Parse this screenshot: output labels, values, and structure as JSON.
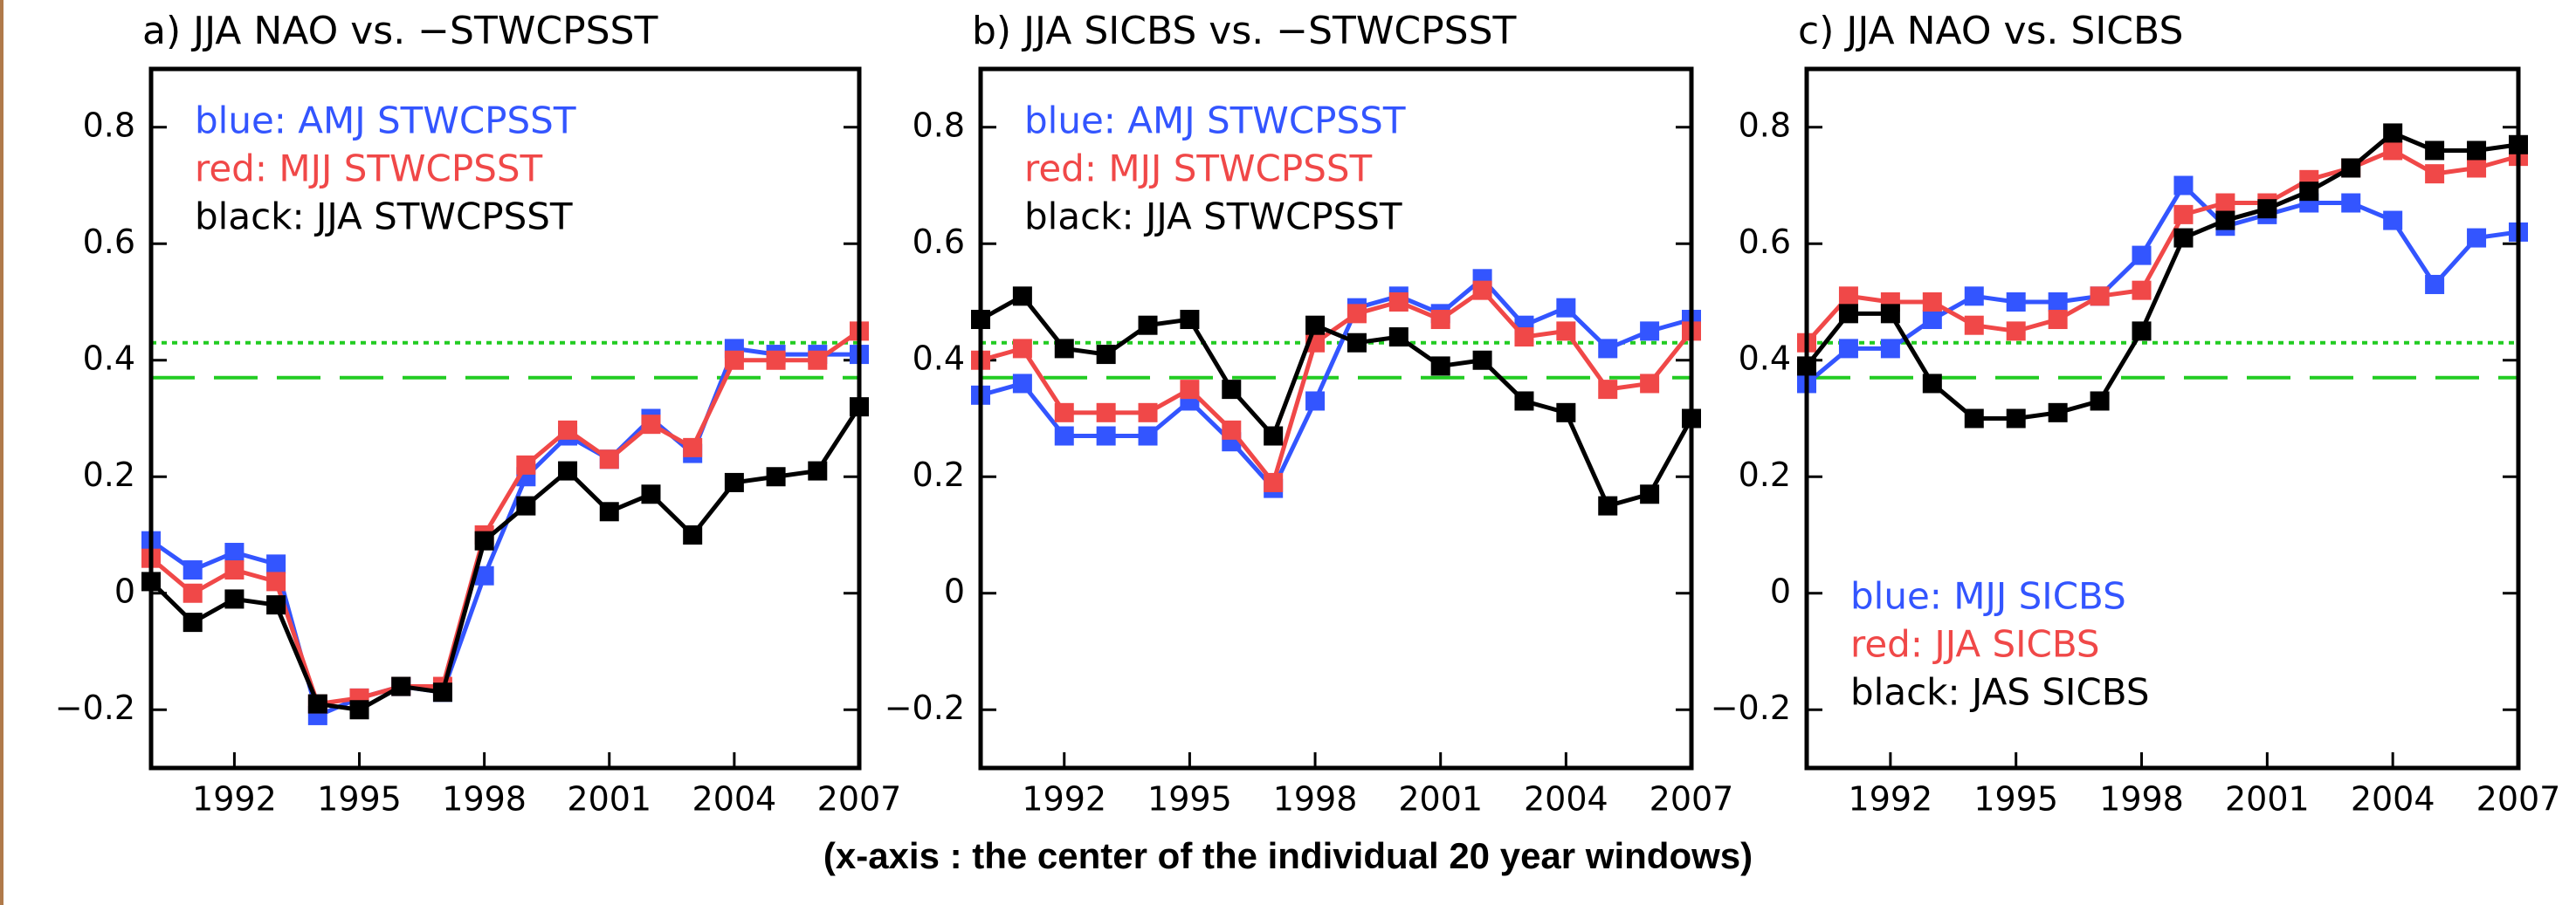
{
  "chart_data": [
    {
      "type": "line",
      "title": "a) JJA NAO vs. −STWCPSST",
      "x": [
        1990,
        1991,
        1992,
        1993,
        1994,
        1995,
        1996,
        1997,
        1998,
        1999,
        2000,
        2001,
        2002,
        2003,
        2004,
        2005,
        2006,
        2007
      ],
      "xlim": [
        1990,
        2007
      ],
      "xticks": [
        1992,
        1995,
        1998,
        2001,
        2004,
        2007
      ],
      "ylim": [
        -0.3,
        0.9
      ],
      "yticks": [
        0.8,
        0.6,
        0.4,
        0.2,
        0,
        {
          "value": -0.2,
          "label": "−0.2"
        }
      ],
      "legend": "upper left",
      "reference_lines": [
        {
          "value": 0.43,
          "style": "dotted",
          "color": "#22cc22"
        },
        {
          "value": 0.37,
          "style": "dashed",
          "color": "#22cc22"
        }
      ],
      "series": [
        {
          "name": "blue: AMJ STWCPSST",
          "color": "#3355ff",
          "values": [
            0.09,
            0.04,
            0.07,
            0.05,
            -0.21,
            -0.18,
            -0.16,
            -0.17,
            0.03,
            0.2,
            0.27,
            0.23,
            0.3,
            0.24,
            0.42,
            0.41,
            0.41,
            0.41
          ]
        },
        {
          "name": "red: MJJ STWCPSST",
          "color": "#f04848",
          "values": [
            0.06,
            0.0,
            0.04,
            0.02,
            -0.19,
            -0.18,
            -0.16,
            -0.16,
            0.1,
            0.22,
            0.28,
            0.23,
            0.29,
            0.25,
            0.4,
            0.4,
            0.4,
            0.45
          ]
        },
        {
          "name": "black: JJA STWCPSST",
          "color": "#000000",
          "values": [
            0.02,
            -0.05,
            -0.01,
            -0.02,
            -0.19,
            -0.2,
            -0.16,
            -0.17,
            0.09,
            0.15,
            0.21,
            0.14,
            0.17,
            0.1,
            0.19,
            0.2,
            0.21,
            0.32
          ]
        }
      ]
    },
    {
      "type": "line",
      "title": "b) JJA SICBS vs. −STWCPSST",
      "x": [
        1990,
        1991,
        1992,
        1993,
        1994,
        1995,
        1996,
        1997,
        1998,
        1999,
        2000,
        2001,
        2002,
        2003,
        2004,
        2005,
        2006,
        2007
      ],
      "xlim": [
        1990,
        2007
      ],
      "xticks": [
        1992,
        1995,
        1998,
        2001,
        2004,
        2007
      ],
      "ylim": [
        -0.3,
        0.9
      ],
      "yticks": [
        0.8,
        0.6,
        0.4,
        0.2,
        0,
        {
          "value": -0.2,
          "label": "−0.2"
        }
      ],
      "legend": "upper left",
      "reference_lines": [
        {
          "value": 0.43,
          "style": "dotted",
          "color": "#22cc22"
        },
        {
          "value": 0.37,
          "style": "dashed",
          "color": "#22cc22"
        }
      ],
      "series": [
        {
          "name": "blue: AMJ STWCPSST",
          "color": "#3355ff",
          "values": [
            0.34,
            0.36,
            0.27,
            0.27,
            0.27,
            0.33,
            0.26,
            0.18,
            0.33,
            0.49,
            0.51,
            0.48,
            0.54,
            0.46,
            0.49,
            0.42,
            0.45,
            0.47
          ]
        },
        {
          "name": "red: MJJ STWCPSST",
          "color": "#f04848",
          "values": [
            0.4,
            0.42,
            0.31,
            0.31,
            0.31,
            0.35,
            0.28,
            0.19,
            0.43,
            0.48,
            0.5,
            0.47,
            0.52,
            0.44,
            0.45,
            0.35,
            0.36,
            0.45
          ]
        },
        {
          "name": "black: JJA STWCPSST",
          "color": "#000000",
          "values": [
            0.47,
            0.51,
            0.42,
            0.41,
            0.46,
            0.47,
            0.35,
            0.27,
            0.46,
            0.43,
            0.44,
            0.39,
            0.4,
            0.33,
            0.31,
            0.15,
            0.17,
            0.3
          ]
        }
      ]
    },
    {
      "type": "line",
      "title": "c) JJA NAO vs. SICBS",
      "x": [
        1990,
        1991,
        1992,
        1993,
        1994,
        1995,
        1996,
        1997,
        1998,
        1999,
        2000,
        2001,
        2002,
        2003,
        2004,
        2005,
        2006,
        2007
      ],
      "xlim": [
        1990,
        2007
      ],
      "xticks": [
        1992,
        1995,
        1998,
        2001,
        2004,
        2007
      ],
      "ylim": [
        -0.3,
        0.9
      ],
      "yticks": [
        0.8,
        0.6,
        0.4,
        0.2,
        0,
        {
          "value": -0.2,
          "label": "−0.2"
        }
      ],
      "legend": "lower left",
      "reference_lines": [
        {
          "value": 0.43,
          "style": "dotted",
          "color": "#22cc22"
        },
        {
          "value": 0.37,
          "style": "dashed",
          "color": "#22cc22"
        }
      ],
      "series": [
        {
          "name": "blue: MJJ SICBS",
          "color": "#3355ff",
          "values": [
            0.36,
            0.42,
            0.42,
            0.47,
            0.51,
            0.5,
            0.5,
            0.51,
            0.58,
            0.7,
            0.63,
            0.65,
            0.67,
            0.67,
            0.64,
            0.53,
            0.61,
            0.62
          ]
        },
        {
          "name": "red: JJA SICBS",
          "color": "#f04848",
          "values": [
            0.43,
            0.51,
            0.5,
            0.5,
            0.46,
            0.45,
            0.47,
            0.51,
            0.52,
            0.65,
            0.67,
            0.67,
            0.71,
            0.73,
            0.76,
            0.72,
            0.73,
            0.75
          ]
        },
        {
          "name": "black: JAS SICBS",
          "color": "#000000",
          "values": [
            0.39,
            0.48,
            0.48,
            0.36,
            0.3,
            0.3,
            0.31,
            0.33,
            0.45,
            0.61,
            0.64,
            0.66,
            0.69,
            0.73,
            0.79,
            0.76,
            0.76,
            0.77
          ]
        }
      ]
    }
  ],
  "caption": "(x-axis : the center of the individual 20 year windows)"
}
